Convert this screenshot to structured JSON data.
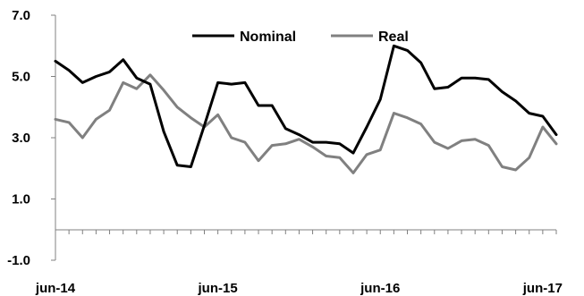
{
  "chart_data": {
    "type": "line",
    "title": "",
    "xlabel": "",
    "ylabel": "",
    "ylim": [
      -1.0,
      7.0
    ],
    "y_ticks": [
      "7.0",
      "5.0",
      "3.0",
      "1.0",
      "-1.0"
    ],
    "y_tick_values": [
      7,
      5,
      3,
      1,
      -1
    ],
    "x_tick_labels": [
      "jun-14",
      "jun-15",
      "jun-16",
      "jun-17"
    ],
    "x_tick_indices": [
      0,
      12,
      24,
      36
    ],
    "grid": false,
    "legend_placement": "top-center",
    "series": [
      {
        "name": "Nominal",
        "color": "#000000",
        "values": [
          5.5,
          5.2,
          4.8,
          5.0,
          5.15,
          5.55,
          4.95,
          4.75,
          3.2,
          2.1,
          2.05,
          3.4,
          4.8,
          4.75,
          4.8,
          4.05,
          4.05,
          3.3,
          3.1,
          2.85,
          2.85,
          2.8,
          2.5,
          3.35,
          4.25,
          6.0,
          5.85,
          5.45,
          4.6,
          4.65,
          4.95,
          4.95,
          4.9,
          4.5,
          4.2,
          3.8,
          3.7,
          3.1
        ]
      },
      {
        "name": "Real",
        "color": "#808080",
        "values": [
          3.6,
          3.5,
          3.0,
          3.6,
          3.9,
          4.8,
          4.6,
          5.05,
          4.55,
          4.0,
          3.65,
          3.35,
          3.75,
          3.0,
          2.85,
          2.25,
          2.75,
          2.8,
          2.95,
          2.7,
          2.4,
          2.35,
          1.85,
          2.45,
          2.6,
          3.8,
          3.65,
          3.45,
          2.85,
          2.65,
          2.9,
          2.95,
          2.75,
          2.05,
          1.95,
          2.35,
          3.35,
          2.8
        ]
      }
    ]
  }
}
